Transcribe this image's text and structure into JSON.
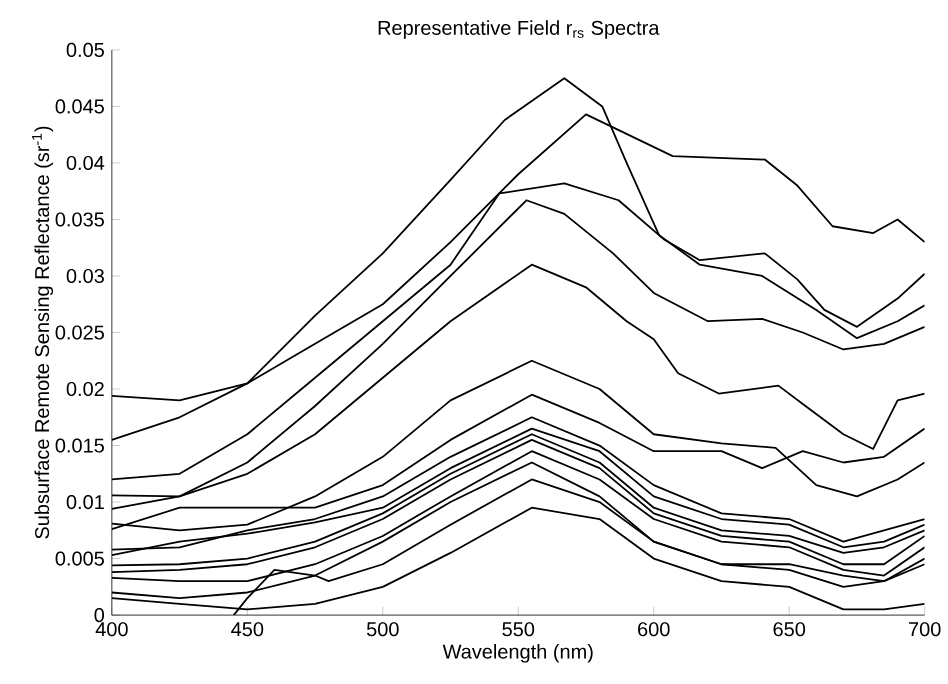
{
  "chart_data": {
    "type": "line",
    "title": "Representative Field r$_{rs}$ Spectra",
    "xlabel": "Wavelength (nm)",
    "ylabel": "Subsurface Remote Sensing Reflectance (sr$^{-1}$)",
    "xlim": [
      400,
      700
    ],
    "ylim": [
      0,
      0.05
    ],
    "xticks": [
      400,
      450,
      500,
      550,
      600,
      650,
      700
    ],
    "yticks": [
      0,
      0.005,
      0.01,
      0.015,
      0.02,
      0.025,
      0.03,
      0.035,
      0.04,
      0.045,
      0.05
    ],
    "grid": false,
    "marker": "none",
    "line_style": "solid",
    "series": [
      {
        "color": "#000000",
        "x": [
          400,
          425,
          450,
          475,
          500,
          525,
          545,
          567,
          581,
          590,
          602,
          617,
          640,
          660,
          675,
          690,
          700
        ],
        "values": [
          0.0194,
          0.019,
          0.0205,
          0.0265,
          0.032,
          0.0385,
          0.0438,
          0.0475,
          0.045,
          0.04,
          0.0336,
          0.031,
          0.03,
          0.027,
          0.0245,
          0.026,
          0.0274
        ]
      },
      {
        "color": "#000000",
        "x": [
          400,
          425,
          450,
          475,
          500,
          525,
          550,
          575,
          607,
          641,
          653,
          666,
          681,
          690,
          700
        ],
        "values": [
          0.0155,
          0.0175,
          0.0205,
          0.024,
          0.0275,
          0.033,
          0.039,
          0.0443,
          0.0406,
          0.0403,
          0.038,
          0.0344,
          0.0338,
          0.035,
          0.033
        ]
      },
      {
        "color": "#000000",
        "x": [
          400,
          425,
          450,
          475,
          500,
          525,
          543,
          567,
          587,
          604,
          617,
          641,
          653,
          663,
          675,
          690,
          700
        ],
        "values": [
          0.012,
          0.0125,
          0.016,
          0.021,
          0.026,
          0.031,
          0.0373,
          0.0382,
          0.0367,
          0.0332,
          0.0314,
          0.032,
          0.0297,
          0.027,
          0.0255,
          0.028,
          0.0302
        ]
      },
      {
        "color": "#000000",
        "x": [
          400,
          425,
          450,
          475,
          500,
          525,
          553,
          567,
          585,
          600,
          620,
          640,
          655,
          670,
          685,
          700
        ],
        "values": [
          0.0106,
          0.0105,
          0.0135,
          0.0185,
          0.024,
          0.03,
          0.0367,
          0.0355,
          0.032,
          0.0285,
          0.026,
          0.0262,
          0.025,
          0.0235,
          0.024,
          0.0255
        ]
      },
      {
        "color": "#000000",
        "x": [
          400,
          425,
          450,
          475,
          500,
          525,
          555,
          575,
          590,
          600,
          609,
          624,
          646,
          656,
          670,
          681,
          690,
          700
        ],
        "values": [
          0.0094,
          0.0105,
          0.0125,
          0.016,
          0.021,
          0.026,
          0.031,
          0.029,
          0.026,
          0.0244,
          0.0214,
          0.0196,
          0.0203,
          0.0185,
          0.016,
          0.0147,
          0.019,
          0.0196
        ]
      },
      {
        "color": "#000000",
        "x": [
          400,
          425,
          450,
          475,
          500,
          525,
          555,
          580,
          600,
          625,
          645,
          660,
          675,
          690,
          700
        ],
        "values": [
          0.0081,
          0.0075,
          0.008,
          0.0105,
          0.014,
          0.019,
          0.0225,
          0.02,
          0.016,
          0.0152,
          0.0148,
          0.0115,
          0.0105,
          0.012,
          0.0135
        ]
      },
      {
        "color": "#000000",
        "x": [
          400,
          425,
          450,
          475,
          500,
          525,
          555,
          580,
          600,
          625,
          640,
          655,
          670,
          685,
          700
        ],
        "values": [
          0.0076,
          0.0095,
          0.0095,
          0.0095,
          0.0115,
          0.0155,
          0.0195,
          0.017,
          0.0145,
          0.0145,
          0.013,
          0.0145,
          0.0135,
          0.014,
          0.0165
        ]
      },
      {
        "color": "#000000",
        "x": [
          400,
          425,
          450,
          475,
          500,
          525,
          555,
          580,
          600,
          625,
          650,
          670,
          685,
          700
        ],
        "values": [
          0.0058,
          0.006,
          0.0075,
          0.0085,
          0.0105,
          0.014,
          0.0175,
          0.015,
          0.0115,
          0.009,
          0.0085,
          0.0065,
          0.0075,
          0.0085
        ]
      },
      {
        "color": "#000000",
        "x": [
          400,
          425,
          450,
          475,
          500,
          525,
          555,
          580,
          600,
          625,
          650,
          670,
          685,
          700
        ],
        "values": [
          0.0053,
          0.0065,
          0.0072,
          0.0082,
          0.0095,
          0.013,
          0.0165,
          0.0145,
          0.0105,
          0.0085,
          0.008,
          0.006,
          0.0065,
          0.008
        ]
      },
      {
        "color": "#000000",
        "x": [
          400,
          425,
          450,
          475,
          500,
          525,
          555,
          580,
          600,
          625,
          650,
          670,
          685,
          700
        ],
        "values": [
          0.0044,
          0.0045,
          0.005,
          0.0065,
          0.009,
          0.0125,
          0.016,
          0.0135,
          0.0095,
          0.0075,
          0.007,
          0.0055,
          0.006,
          0.0075
        ]
      },
      {
        "color": "#000000",
        "x": [
          400,
          425,
          450,
          475,
          500,
          525,
          555,
          580,
          600,
          625,
          650,
          670,
          685,
          700
        ],
        "values": [
          0.0038,
          0.004,
          0.0045,
          0.006,
          0.0085,
          0.012,
          0.0155,
          0.013,
          0.009,
          0.007,
          0.0065,
          0.0045,
          0.0045,
          0.007
        ]
      },
      {
        "color": "#000000",
        "x": [
          400,
          425,
          450,
          475,
          500,
          525,
          555,
          580,
          600,
          625,
          650,
          670,
          685,
          700
        ],
        "values": [
          0.0033,
          0.003,
          0.003,
          0.0045,
          0.007,
          0.0105,
          0.0145,
          0.012,
          0.0085,
          0.0065,
          0.006,
          0.004,
          0.0035,
          0.006
        ]
      },
      {
        "color": "#000000",
        "x": [
          400,
          425,
          450,
          475,
          500,
          525,
          555,
          580,
          600,
          625,
          650,
          670,
          685,
          700
        ],
        "values": [
          0.002,
          0.0015,
          0.002,
          0.0035,
          0.0065,
          0.01,
          0.0135,
          0.0105,
          0.0065,
          0.0045,
          0.0045,
          0.0035,
          0.003,
          0.005
        ]
      },
      {
        "color": "#000000",
        "x": [
          400,
          425,
          450,
          475,
          500,
          525,
          555,
          580,
          600,
          625,
          650,
          670,
          685,
          700
        ],
        "values": [
          0.0015,
          0.001,
          0.0005,
          0.001,
          0.0025,
          0.0055,
          0.0095,
          0.0085,
          0.005,
          0.003,
          0.0025,
          0.0005,
          0.0005,
          0.001
        ]
      },
      {
        "color": "#000000",
        "x": [
          445,
          450,
          460,
          475,
          480,
          500,
          525,
          555,
          580,
          600,
          625,
          650,
          670,
          685,
          700
        ],
        "values": [
          0,
          0.0015,
          0.004,
          0.0035,
          0.003,
          0.0045,
          0.008,
          0.012,
          0.01,
          0.0065,
          0.0045,
          0.004,
          0.0025,
          0.003,
          0.0045
        ]
      }
    ]
  }
}
